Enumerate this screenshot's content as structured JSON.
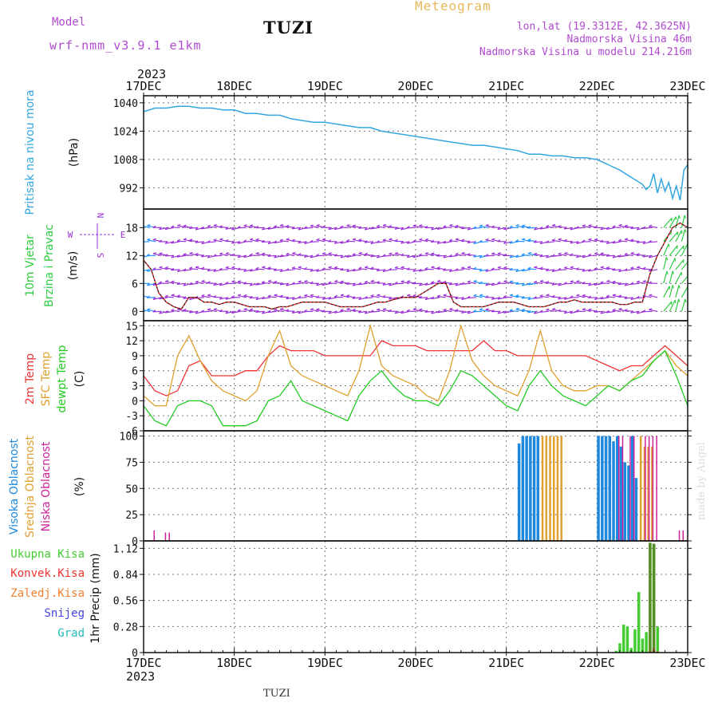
{
  "header": {
    "model_label": "Model",
    "model_value": "wrf-nmm_v3.9.1 e1km",
    "station": "TUZI",
    "title": "Meteogram",
    "coords": "lon,lat (19.3312E, 42.3625N)",
    "elevation": "Nadmorska Visina 46m",
    "model_elevation": "Nadmorska Visina u modelu 214.216m"
  },
  "footer": {
    "station": "TUZI",
    "credit": "made by Angel"
  },
  "time_axis": {
    "year": "2023",
    "labels": [
      "17DEC",
      "18DEC",
      "19DEC",
      "20DEC",
      "21DEC",
      "22DEC",
      "23DEC"
    ],
    "hours_span": 144
  },
  "colors": {
    "pressure": "#33a6e0",
    "wind_label": "#2ecc40",
    "wind_arrow_light": "#9b30d8",
    "wind_arrow_strong": "#1e90ff",
    "wind_speed": "#ee3333",
    "temp2m": "#ee3333",
    "sfc_temp": "#e0a030",
    "dewpt": "#22cc22",
    "cloud_high": "#1e88dd",
    "cloud_mid": "#e0a030",
    "cloud_low": "#cc2299",
    "precip_total": "#44cc33",
    "precip_conv": "#ee3333",
    "precip_frozen": "#f08030",
    "snow": "#4444dd",
    "hail": "#22bbbb"
  },
  "panel_labels": {
    "pressure": {
      "name": "Pritisak na nivou mora",
      "unit": "(hPa)"
    },
    "wind": {
      "name1": "10m Vjetar",
      "name2": "Brzina i Pravac",
      "unit": "(m/s)",
      "rose_n": "N",
      "rose_s": "S",
      "rose_w": "W",
      "rose_e": "E"
    },
    "temp": {
      "l1": "2m Temp",
      "l2": "SFC Temp",
      "l3": "dewpt Temp",
      "unit": "(C)"
    },
    "cloud": {
      "l1": "Visoka Oblacnost",
      "l2": "Srednja Oblacnost",
      "l3": "Niska Oblacnost",
      "unit": "(%)"
    },
    "precip": {
      "l1": "Ukupna Kisa",
      "l2": "Konvek.Kisa",
      "l3": "Zaledj.Kisa",
      "l4": "Snijeg",
      "l5": "Grad",
      "unit": "1hr Precip (mm)"
    }
  },
  "chart_data": [
    {
      "type": "line",
      "name": "pressure",
      "ylim": [
        980,
        1044
      ],
      "yticks": [
        992,
        1008,
        1024,
        1040
      ],
      "x": [
        0,
        3,
        6,
        9,
        12,
        15,
        18,
        21,
        24,
        27,
        30,
        33,
        36,
        39,
        42,
        45,
        48,
        51,
        54,
        57,
        60,
        63,
        66,
        69,
        72,
        75,
        78,
        81,
        84,
        87,
        90,
        93,
        96,
        99,
        102,
        105,
        108,
        111,
        114,
        117,
        120,
        123,
        126,
        129,
        132,
        133,
        134,
        135,
        136,
        137,
        138,
        139,
        140,
        141,
        142,
        143,
        144
      ],
      "y": [
        1035,
        1037,
        1037,
        1038,
        1038,
        1037,
        1037,
        1036,
        1036,
        1034,
        1034,
        1033,
        1033,
        1031,
        1030,
        1029,
        1029,
        1028,
        1027,
        1026,
        1026,
        1024,
        1023,
        1022,
        1021,
        1020,
        1019,
        1018,
        1017,
        1016,
        1016,
        1015,
        1014,
        1013,
        1011,
        1011,
        1010,
        1010,
        1009,
        1009,
        1008,
        1005,
        1002,
        998,
        994,
        991,
        993,
        1000,
        989,
        997,
        990,
        995,
        986,
        993,
        985,
        1002,
        1005
      ]
    },
    {
      "type": "line",
      "name": "wind",
      "ylim": [
        -2,
        22
      ],
      "yticks": [
        0,
        6,
        12,
        18
      ],
      "x": [
        0,
        2,
        4,
        6,
        8,
        10,
        12,
        14,
        16,
        18,
        20,
        22,
        24,
        26,
        28,
        30,
        32,
        34,
        36,
        38,
        40,
        42,
        44,
        46,
        48,
        50,
        52,
        54,
        56,
        58,
        60,
        62,
        64,
        66,
        68,
        70,
        72,
        74,
        76,
        78,
        80,
        82,
        84,
        86,
        88,
        90,
        92,
        94,
        96,
        98,
        100,
        102,
        104,
        106,
        108,
        110,
        112,
        114,
        116,
        118,
        120,
        122,
        124,
        126,
        128,
        130,
        132,
        134,
        136,
        138,
        140,
        142,
        144
      ],
      "y": [
        11,
        9,
        4,
        2,
        1,
        0.5,
        3,
        3,
        2,
        2,
        1.5,
        2,
        2,
        1.5,
        1,
        1,
        1,
        0.5,
        1,
        1,
        1.5,
        2,
        2,
        2,
        2,
        1.5,
        1,
        1,
        1,
        1,
        1.5,
        2,
        2,
        2.5,
        3,
        3,
        3,
        4,
        5,
        6,
        6,
        2,
        1,
        1,
        1,
        1,
        1.5,
        2,
        2,
        2,
        1.5,
        1,
        1,
        1,
        1.5,
        2,
        2,
        2.5,
        2,
        2,
        2,
        2,
        2,
        1.5,
        1.5,
        2,
        2,
        8,
        12,
        15,
        18,
        19,
        18
      ]
    },
    {
      "type": "line",
      "name": "temperature",
      "ylim": [
        -6,
        16
      ],
      "yticks": [
        -6,
        -3,
        0,
        3,
        6,
        9,
        12,
        15
      ],
      "x": [
        0,
        3,
        6,
        9,
        12,
        15,
        18,
        21,
        24,
        27,
        30,
        33,
        36,
        39,
        42,
        45,
        48,
        51,
        54,
        57,
        60,
        63,
        66,
        69,
        72,
        75,
        78,
        81,
        84,
        87,
        90,
        93,
        96,
        99,
        102,
        105,
        108,
        111,
        114,
        117,
        120,
        123,
        126,
        129,
        132,
        135,
        138,
        141,
        144
      ],
      "series": [
        {
          "name": "2m Temp",
          "values": [
            5,
            2,
            1,
            2,
            7,
            8,
            5,
            5,
            5,
            6,
            6,
            9,
            11,
            10,
            10,
            10,
            9,
            9,
            9,
            9,
            9,
            12,
            11,
            11,
            11,
            10,
            10,
            10,
            10,
            10,
            12,
            10,
            10,
            9,
            9,
            9,
            9,
            9,
            9,
            9,
            8,
            7,
            6,
            7,
            7,
            9,
            11,
            9,
            7
          ]
        },
        {
          "name": "SFC Temp",
          "values": [
            1,
            -1,
            -1,
            9,
            13,
            8,
            4,
            2,
            1,
            0,
            2,
            9,
            14,
            7,
            5,
            4,
            3,
            2,
            1,
            6,
            15,
            7,
            5,
            4,
            3,
            1,
            0,
            6,
            15,
            8,
            5,
            3,
            2,
            1,
            6,
            14,
            6,
            3,
            2,
            2,
            3,
            3,
            2,
            4,
            6,
            8,
            10,
            7,
            5
          ]
        },
        {
          "name": "dewpt Temp",
          "values": [
            -1,
            -4,
            -5,
            -1,
            0,
            0,
            -1,
            -5,
            -5,
            -5,
            -4,
            0,
            1,
            4,
            0,
            -1,
            -2,
            -3,
            -4,
            1,
            4,
            6,
            3,
            1,
            0,
            0,
            -1,
            2,
            6,
            5,
            3,
            1,
            -1,
            -2,
            3,
            6,
            3,
            1,
            0,
            -1,
            1,
            3,
            2,
            4,
            5,
            8,
            10,
            5,
            -1
          ]
        }
      ]
    },
    {
      "type": "bar",
      "name": "cloud",
      "ylim": [
        0,
        105
      ],
      "yticks": [
        0,
        25,
        50,
        75,
        100
      ],
      "series": [
        {
          "name": "Visoka Oblacnost",
          "x": [
            99,
            100,
            101,
            102,
            103,
            104,
            120,
            121,
            122,
            123,
            124,
            125,
            126,
            127,
            128,
            129,
            130
          ],
          "values": [
            93,
            100,
            100,
            100,
            100,
            100,
            100,
            100,
            100,
            100,
            95,
            100,
            90,
            75,
            72,
            100,
            60
          ]
        },
        {
          "name": "Srednja Oblacnost",
          "x": [
            105,
            106,
            107,
            108,
            109,
            110,
            131,
            132,
            133,
            134
          ],
          "values": [
            100,
            100,
            100,
            100,
            100,
            100,
            100,
            90,
            90,
            90
          ]
        },
        {
          "name": "Niska Oblacnost",
          "x": [
            2,
            5,
            6,
            125,
            126,
            128,
            129,
            132,
            133,
            134,
            135,
            141,
            142
          ],
          "values": [
            10,
            8,
            8,
            100,
            100,
            100,
            100,
            100,
            100,
            100,
            100,
            10,
            10
          ]
        }
      ]
    },
    {
      "type": "bar",
      "name": "precip",
      "ylim": [
        0,
        1.2
      ],
      "yticks": [
        0,
        0.28,
        0.56,
        0.84,
        1.12
      ],
      "series": [
        {
          "name": "Ukupna Kisa",
          "x": [
            125,
            126,
            127,
            128,
            129,
            130,
            131,
            132,
            133,
            134,
            135,
            136
          ],
          "values": [
            0.02,
            0.1,
            0.3,
            0.28,
            0.05,
            0.25,
            0.65,
            0.15,
            0.22,
            1.18,
            1.17,
            0.28
          ]
        },
        {
          "name": "Konvek.Kisa",
          "x": [
            134,
            135,
            136
          ],
          "values": [
            0.02,
            0.05,
            0.01
          ]
        }
      ]
    }
  ]
}
